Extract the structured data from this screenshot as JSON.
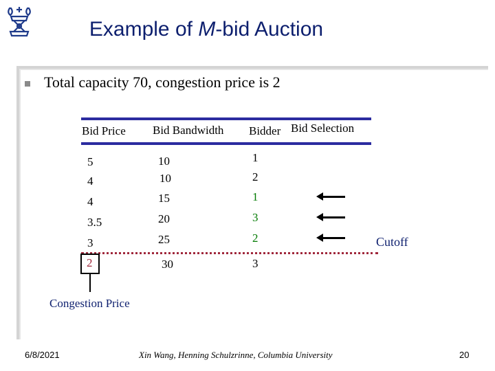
{
  "slide": {
    "title": "Example of M-bid Auction",
    "title_prefix": "Example of ",
    "title_italic": "M",
    "title_suffix": "-bid Auction",
    "bullet": "Total capacity 70, congestion price is 2"
  },
  "table": {
    "headers": {
      "bid_price": "Bid Price",
      "bid_bandwidth": "Bid Bandwidth",
      "bidder": "Bidder",
      "bid_selection": "Bid Selection"
    },
    "rows": [
      {
        "price": "5",
        "bandwidth": "10",
        "bidder": "1"
      },
      {
        "price": "4",
        "bandwidth": "10",
        "bidder": "2"
      },
      {
        "price": "4",
        "bandwidth": "15",
        "bidder": "1"
      },
      {
        "price": "3.5",
        "bandwidth": "20",
        "bidder": "3"
      },
      {
        "price": "3",
        "bandwidth": "25",
        "bidder": "2"
      },
      {
        "price": "2",
        "bandwidth": "30",
        "bidder": "3"
      }
    ]
  },
  "annotations": {
    "cutoff": "Cutoff",
    "congestion_price": "Congestion Price"
  },
  "footer": {
    "date": "6/8/2021",
    "authors": "Xin Wang, Henning Schulzrinne, Columbia University",
    "page": "20"
  },
  "colors": {
    "title": "#0d1f6e",
    "rule": "#2c2ca0",
    "selected_bidder": "#007a00",
    "cutoff_line": "#a0283c"
  },
  "icons": [
    "columbia-crown-logo",
    "left-arrow-icon",
    "square-bullet-icon"
  ]
}
